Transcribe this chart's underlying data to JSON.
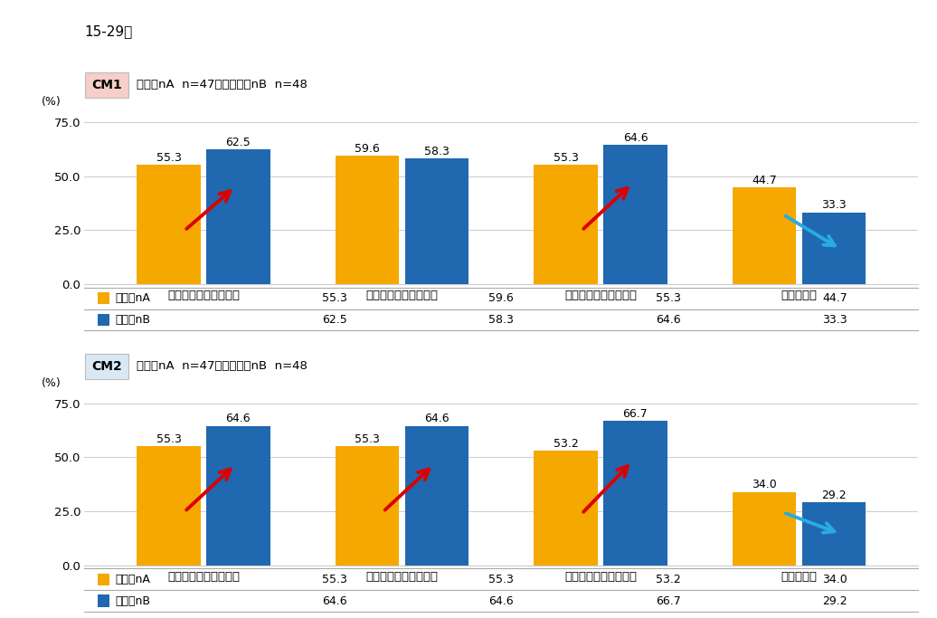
{
  "title_age": "15-29歳",
  "cm1_label": "CM1",
  "cm2_label": "CM2",
  "cm1_subtitle": "パターnA  n=47　　パターnB  n=48",
  "cm2_subtitle": "パターnA  n=47　　パターnB  n=48",
  "categories": [
    "広告を煩わしく感じる",
    "広告で注意をそがれる",
    "広告を目障りに感じる",
    "広告受容性"
  ],
  "cm1_patternA": [
    55.3,
    59.6,
    55.3,
    44.7
  ],
  "cm1_patternB": [
    62.5,
    58.3,
    64.6,
    33.3
  ],
  "cm2_patternA": [
    55.3,
    55.3,
    53.2,
    34.0
  ],
  "cm2_patternB": [
    64.6,
    64.6,
    66.7,
    29.2
  ],
  "color_A": "#F5A800",
  "color_B": "#2068B0",
  "ylim": [
    0,
    80
  ],
  "yticks": [
    0.0,
    25.0,
    50.0,
    75.0
  ],
  "ytick_labels": [
    "0.0",
    "25.0",
    "50.0",
    "75.0"
  ],
  "ylabel": "(%)",
  "legend_A": "パターnA",
  "legend_B": "パターnB",
  "cm1_box_color": "#F5CFC8",
  "cm2_box_color": "#D9E8F5",
  "arrow_up_color": "#DD0000",
  "arrow_down_color": "#29ABE2",
  "cm1_arrows": [
    1,
    0,
    1,
    -1
  ],
  "cm2_arrows": [
    1,
    1,
    1,
    -1
  ],
  "bg_color": "#FFFFFF"
}
